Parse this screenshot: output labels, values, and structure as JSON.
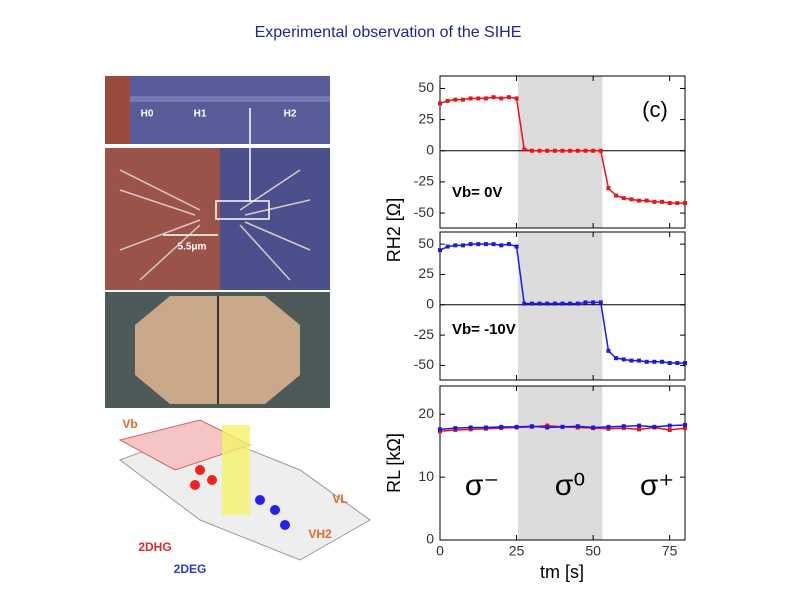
{
  "title": "Experimental observation of the SIHE",
  "figure_labels": {
    "sem": [
      "H0",
      "H1",
      "H2"
    ],
    "scale": "5.5μm",
    "diagram": [
      "Vb",
      "VL",
      "VH2",
      "2DHG",
      "2DEG"
    ]
  },
  "chart_data": [
    {
      "type": "line",
      "ylabel": "RH2 [Ω]",
      "xlim": [
        0,
        80
      ],
      "xticks": [
        0,
        25,
        50,
        75
      ],
      "ylim": [
        -62,
        60
      ],
      "yticks": [
        -50,
        -25,
        0,
        25,
        50
      ],
      "shaded_region": [
        25.5,
        53
      ],
      "annotations": [
        "(c)",
        "Vb= 0V"
      ],
      "x": [
        0,
        2.5,
        5,
        7.5,
        10,
        12.5,
        15,
        17.5,
        20,
        22.5,
        25,
        27.5,
        30,
        32.5,
        35,
        37.5,
        40,
        42.5,
        45,
        47.5,
        50,
        52.5,
        55,
        57.5,
        60,
        62.5,
        65,
        67.5,
        70,
        72.5,
        75,
        77.5,
        80
      ],
      "series": [
        {
          "name": "Vb= 0V",
          "color": "#e8141b",
          "values": [
            38,
            40,
            41,
            41,
            42,
            42,
            42,
            43,
            42,
            43,
            42,
            1,
            0,
            0,
            0,
            0,
            0,
            0,
            0,
            0,
            0,
            0,
            -30,
            -36,
            -38,
            -39,
            -40,
            -40,
            -41,
            -41,
            -42,
            -42,
            -42
          ]
        }
      ]
    },
    {
      "type": "line",
      "xlim": [
        0,
        80
      ],
      "xticks": [
        0,
        25,
        50,
        75
      ],
      "ylim": [
        -62,
        60
      ],
      "yticks": [
        -50,
        -25,
        0,
        25,
        50
      ],
      "shaded_region": [
        25.5,
        53
      ],
      "annotations": [
        "Vb= -10V"
      ],
      "x": [
        0,
        2.5,
        5,
        7.5,
        10,
        12.5,
        15,
        17.5,
        20,
        22.5,
        25,
        27.5,
        30,
        32.5,
        35,
        37.5,
        40,
        42.5,
        45,
        47.5,
        50,
        52.5,
        55,
        57.5,
        60,
        62.5,
        65,
        67.5,
        70,
        72.5,
        75,
        77.5,
        80
      ],
      "series": [
        {
          "name": "Vb= -10V",
          "color": "#1a1ae6",
          "values": [
            45,
            48,
            49,
            49,
            50,
            50,
            50,
            50,
            49,
            50,
            48,
            1,
            1,
            1,
            1,
            1,
            1,
            1,
            1,
            2,
            2,
            2,
            -38,
            -44,
            -45,
            -46,
            -46,
            -47,
            -47,
            -47,
            -48,
            -48,
            -48
          ]
        }
      ]
    },
    {
      "type": "line",
      "ylabel": "RL [kΩ]",
      "xlabel": "tm [s]",
      "xlim": [
        0,
        80
      ],
      "xticks": [
        0,
        25,
        50,
        75
      ],
      "ylim": [
        0,
        24.5
      ],
      "yticks": [
        0,
        10,
        20
      ],
      "shaded_region": [
        25.5,
        53
      ],
      "annotations": [
        "σ⁻",
        "σ⁰",
        "σ⁺"
      ],
      "x": [
        0,
        5,
        10,
        15,
        20,
        25,
        30,
        35,
        40,
        45,
        50,
        55,
        60,
        65,
        70,
        75,
        80
      ],
      "series": [
        {
          "name": "red",
          "color": "#e8141b",
          "values": [
            17.3,
            17.5,
            17.6,
            17.7,
            17.8,
            17.9,
            18,
            18.2,
            18,
            17.9,
            17.8,
            17.7,
            17.8,
            17.6,
            17.9,
            17.5,
            17.8
          ]
        },
        {
          "name": "blue",
          "color": "#1a1ae6",
          "values": [
            17.6,
            17.8,
            17.9,
            17.9,
            18,
            18,
            18.1,
            17.9,
            18,
            18.1,
            17.9,
            18,
            18.1,
            18.2,
            18,
            18.2,
            18.3
          ]
        }
      ]
    }
  ]
}
